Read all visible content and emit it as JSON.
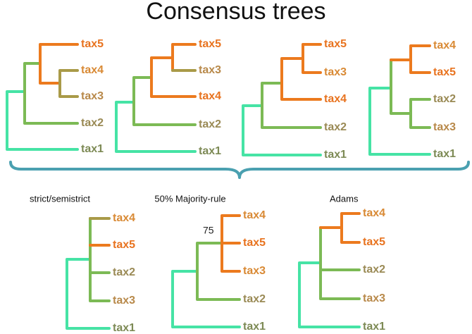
{
  "title": "Consensus trees",
  "input_trees": [
    {
      "leaves": [
        "tax5",
        "tax4",
        "tax3",
        "tax2",
        "tax1"
      ]
    },
    {
      "leaves": [
        "tax5",
        "tax3",
        "tax4",
        "tax2",
        "tax1"
      ]
    },
    {
      "leaves": [
        "tax5",
        "tax3",
        "tax4",
        "tax2",
        "tax1"
      ]
    },
    {
      "leaves": [
        "tax4",
        "tax5",
        "tax2",
        "tax3",
        "tax1"
      ]
    }
  ],
  "consensus_trees": [
    {
      "title": "strict/semistrict",
      "leaves": [
        "tax4",
        "tax5",
        "tax2",
        "tax3",
        "tax1"
      ]
    },
    {
      "title": "50% Majority-rule",
      "leaves": [
        "tax4",
        "tax5",
        "tax3",
        "tax2",
        "tax1"
      ],
      "support_label": "75"
    },
    {
      "title": "Adams",
      "leaves": [
        "tax4",
        "tax5",
        "tax2",
        "tax3",
        "tax1"
      ]
    }
  ]
}
